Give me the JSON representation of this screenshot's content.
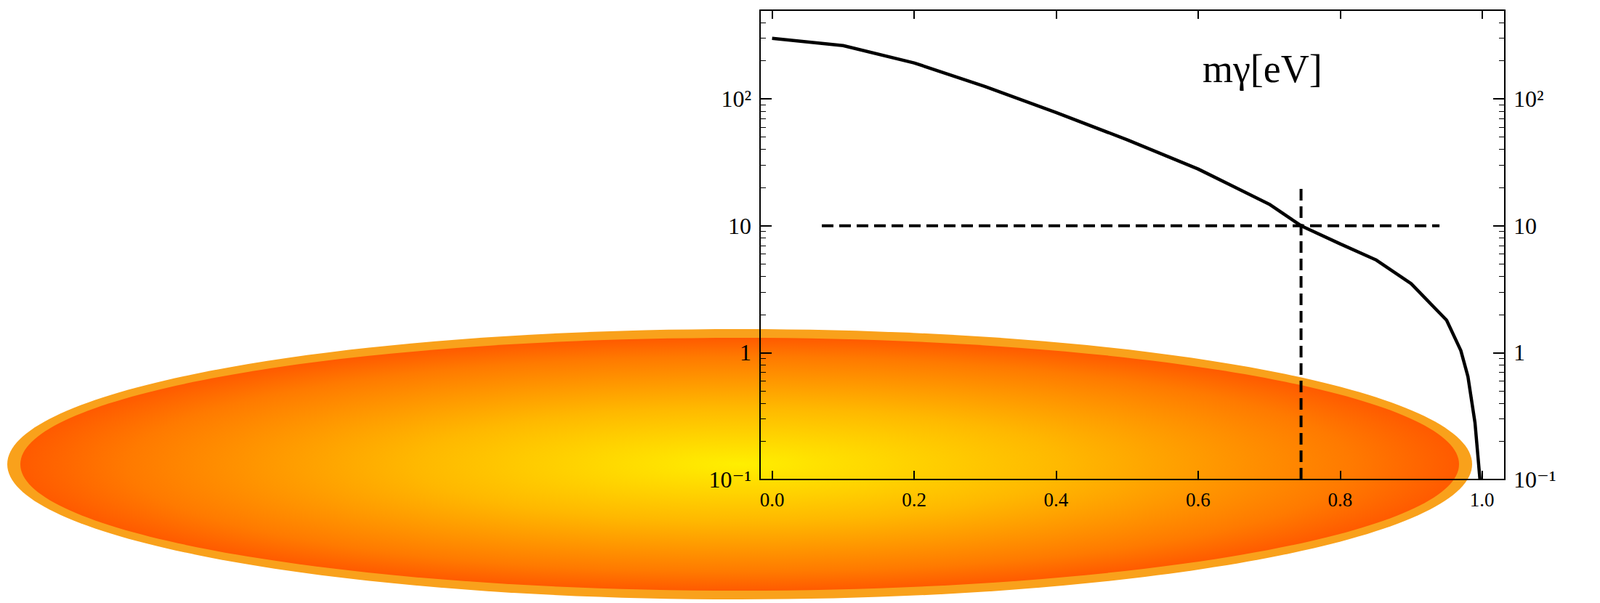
{
  "chart_data": {
    "type": "line",
    "annotation": "mγ[eV]",
    "log": "y",
    "grid": false,
    "xlim": [
      -0.017,
      1.032
    ],
    "xticks": [
      {
        "value": 0,
        "label": "0.0"
      },
      0.2,
      0.4,
      0.6,
      0.8,
      {
        "value": 1,
        "label": "1.0"
      }
    ],
    "ylim": [
      0.1,
      500
    ],
    "yticks": [
      {
        "value": 0.1,
        "label": "10⁻¹"
      },
      1,
      10,
      {
        "value": 100,
        "label": "10²"
      }
    ],
    "series": [
      {
        "color": "#000000",
        "line_style": "solid",
        "x": [
          0,
          0.1,
          0.2,
          0.3,
          0.4,
          0.5,
          0.6,
          0.7,
          0.745,
          0.8,
          0.85,
          0.9,
          0.95,
          0.97,
          0.98,
          0.99,
          0.997
        ],
        "values": [
          300,
          263,
          192,
          125,
          78,
          47.6,
          28,
          14.8,
          10,
          7.2,
          5.4,
          3.5,
          1.8,
          1.04,
          0.65,
          0.28,
          0.1
        ]
      },
      {
        "color": "#000000",
        "line_style": "dashed",
        "x": [
          0.07,
          0.94
        ],
        "values": [
          10,
          10
        ]
      },
      {
        "color": "#000000",
        "line_style": "dashed",
        "x": [
          0.745,
          0.745
        ],
        "values": [
          0.1,
          21
        ]
      }
    ]
  }
}
